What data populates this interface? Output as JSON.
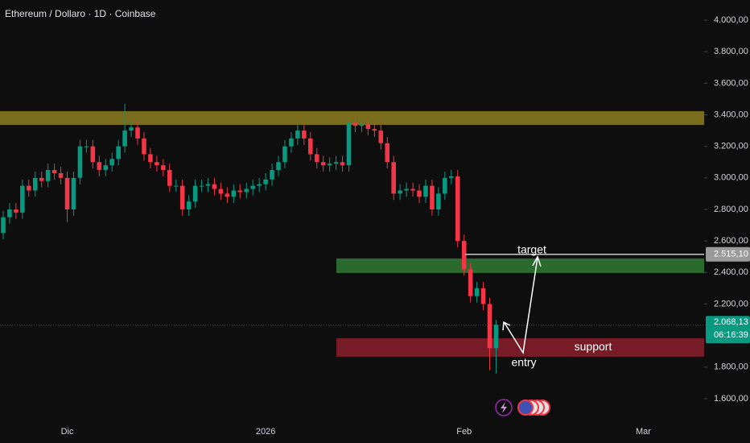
{
  "chart_data": {
    "type": "candlestick",
    "title": "Ethereum / Dollaro · 1D · Coinbase",
    "up_color": "#089981",
    "down_color": "#f23645",
    "categories": [
      null,
      null,
      null,
      null,
      null,
      null,
      null,
      null,
      null,
      null,
      "Dic",
      null,
      null,
      null,
      null,
      null,
      null,
      null,
      null,
      null,
      null,
      null,
      null,
      null,
      null,
      null,
      null,
      null,
      null,
      null,
      null,
      null,
      null,
      null,
      null,
      null,
      null,
      null,
      null,
      null,
      null,
      "2026",
      null,
      null,
      null,
      null,
      null,
      null,
      null,
      null,
      null,
      null,
      null,
      null,
      null,
      null,
      null,
      null,
      null,
      null,
      null,
      null,
      null,
      null,
      null,
      null,
      null,
      null,
      null,
      null,
      null,
      null,
      "Feb",
      null,
      null,
      null,
      null,
      null,
      null,
      null,
      null,
      null,
      null,
      null,
      null,
      null,
      null,
      null,
      null,
      null,
      null,
      null,
      null,
      null,
      null,
      null,
      null,
      null,
      null,
      null,
      "Mar",
      null,
      null,
      null,
      null,
      null,
      null,
      null,
      null,
      null
    ],
    "open": [
      2650,
      2750,
      2800,
      2780,
      2950,
      2920,
      3000,
      2980,
      3050,
      3030,
      3000,
      2800,
      3000,
      3200,
      3200,
      3100,
      3050,
      3080,
      3120,
      3200,
      3300,
      3320,
      3250,
      3150,
      3100,
      3080,
      3050,
      2950,
      2950,
      2800,
      2850,
      2950,
      2950,
      2960,
      2930,
      2900,
      2880,
      2920,
      2910,
      2930,
      2950,
      2960,
      2990,
      3050,
      3100,
      3200,
      3250,
      3300,
      3250,
      3150,
      3100,
      3080,
      3090,
      3100,
      3080,
      3350,
      3330,
      3340,
      3310,
      3300,
      3220,
      3100,
      2900,
      2920,
      2930,
      2920,
      2880,
      2950,
      2800,
      2900,
      3000,
      3010,
      2600,
      2420,
      2250,
      2300,
      2200,
      1920,
      null,
      null,
      null,
      null,
      null,
      null,
      null,
      null,
      null,
      null,
      null,
      null,
      null,
      null,
      null,
      null,
      null,
      null,
      null,
      null,
      null,
      null,
      null,
      null,
      null,
      null,
      null,
      null,
      null,
      null,
      null,
      null
    ],
    "high": [
      2790,
      2840,
      2840,
      2990,
      2990,
      3040,
      3040,
      3090,
      3090,
      3070,
      3040,
      3040,
      3240,
      3240,
      3240,
      3140,
      3120,
      3160,
      3240,
      3470,
      3360,
      3360,
      3290,
      3190,
      3140,
      3120,
      3090,
      2990,
      2990,
      2890,
      2990,
      2990,
      3000,
      3000,
      2970,
      2940,
      2960,
      2960,
      2970,
      2990,
      3000,
      3030,
      3090,
      3140,
      3240,
      3290,
      3340,
      3340,
      3290,
      3190,
      3140,
      3130,
      3140,
      3140,
      3390,
      3390,
      3380,
      3380,
      3350,
      3340,
      3260,
      3140,
      2960,
      2970,
      2970,
      2960,
      2990,
      2990,
      2940,
      3040,
      3050,
      3050,
      2640,
      2460,
      2340,
      2340,
      2240,
      2100,
      null,
      null,
      null,
      null,
      null,
      null,
      null,
      null,
      null,
      null,
      null,
      null,
      null,
      null,
      null,
      null,
      null,
      null,
      null,
      null,
      null,
      null,
      null,
      null,
      null,
      null,
      null,
      null,
      null,
      null,
      null,
      null
    ],
    "low": [
      2610,
      2710,
      2740,
      2740,
      2880,
      2880,
      2940,
      2940,
      2990,
      2960,
      2720,
      2760,
      2960,
      3160,
      3060,
      3010,
      3010,
      3040,
      3080,
      3160,
      3260,
      3210,
      3110,
      3060,
      3040,
      3010,
      2910,
      2910,
      2760,
      2760,
      2810,
      2910,
      2910,
      2890,
      2860,
      2840,
      2840,
      2870,
      2870,
      2890,
      2910,
      2920,
      2950,
      3010,
      3060,
      3160,
      3210,
      3210,
      3110,
      3060,
      3040,
      3040,
      3050,
      3040,
      3040,
      3290,
      3290,
      3270,
      3260,
      3180,
      3060,
      2860,
      2860,
      2880,
      2880,
      2840,
      2840,
      2760,
      2760,
      2860,
      2960,
      2560,
      2380,
      2210,
      2210,
      2160,
      1780,
      1760,
      null,
      null,
      null,
      null,
      null,
      null,
      null,
      null,
      null,
      null,
      null,
      null,
      null,
      null,
      null,
      null,
      null,
      null,
      null,
      null,
      null,
      null,
      null,
      null,
      null,
      null,
      null,
      null,
      null,
      null,
      null,
      null
    ],
    "close": [
      2750,
      2800,
      2780,
      2950,
      2920,
      3000,
      2980,
      3050,
      3030,
      3000,
      2800,
      3000,
      3200,
      3200,
      3100,
      3050,
      3080,
      3120,
      3200,
      3300,
      3320,
      3250,
      3150,
      3100,
      3080,
      3050,
      2950,
      2950,
      2800,
      2850,
      2950,
      2950,
      2960,
      2930,
      2900,
      2880,
      2920,
      2910,
      2930,
      2950,
      2960,
      2990,
      3050,
      3100,
      3200,
      3250,
      3300,
      3250,
      3150,
      3100,
      3080,
      3090,
      3100,
      3080,
      3350,
      3330,
      3340,
      3310,
      3300,
      3220,
      3100,
      2900,
      2920,
      2930,
      2920,
      2880,
      2950,
      2800,
      2900,
      3000,
      3010,
      2600,
      2420,
      2250,
      2300,
      2200,
      1920,
      2068.13,
      null,
      null,
      null,
      null,
      null,
      null,
      null,
      null,
      null,
      null,
      null,
      null,
      null,
      null,
      null,
      null,
      null,
      null,
      null,
      null,
      null,
      null,
      null,
      null,
      null,
      null,
      null,
      null,
      null,
      null,
      null,
      null
    ],
    "ylim": [
      1472,
      4128
    ],
    "yticks": [
      {
        "value": 1600,
        "label": "1.600,00"
      },
      {
        "value": 1800,
        "label": "1.800,00"
      },
      {
        "value": 2200,
        "label": "2.200,00"
      },
      {
        "value": 2400,
        "label": "2.400,00"
      },
      {
        "value": 2600,
        "label": "2.600,00"
      },
      {
        "value": 2800,
        "label": "2.800,00"
      },
      {
        "value": 3000,
        "label": "3.000,00"
      },
      {
        "value": 3200,
        "label": "3.200,00"
      },
      {
        "value": 3400,
        "label": "3.400,00"
      },
      {
        "value": 3600,
        "label": "3.600,00"
      },
      {
        "value": 3800,
        "label": "3.800,00"
      },
      {
        "value": 4000,
        "label": "4.000,00"
      }
    ],
    "zones": [
      {
        "from": 3336,
        "to": 3423,
        "color": "#8c7d1e"
      },
      {
        "from": 2397,
        "to": 2489,
        "color": "#2f7a32"
      },
      {
        "from": 1866,
        "to": 1983,
        "color": "#8a1f2b",
        "label": "support"
      }
    ],
    "target": {
      "value": 2515.1,
      "label": "2.515,10",
      "text": "target",
      "color": "#9a9a9a"
    },
    "last_price": {
      "value": 2068.13,
      "label": "2.068,13",
      "countdown": "06:16:39",
      "color": "#089981"
    },
    "entry": "entry"
  }
}
